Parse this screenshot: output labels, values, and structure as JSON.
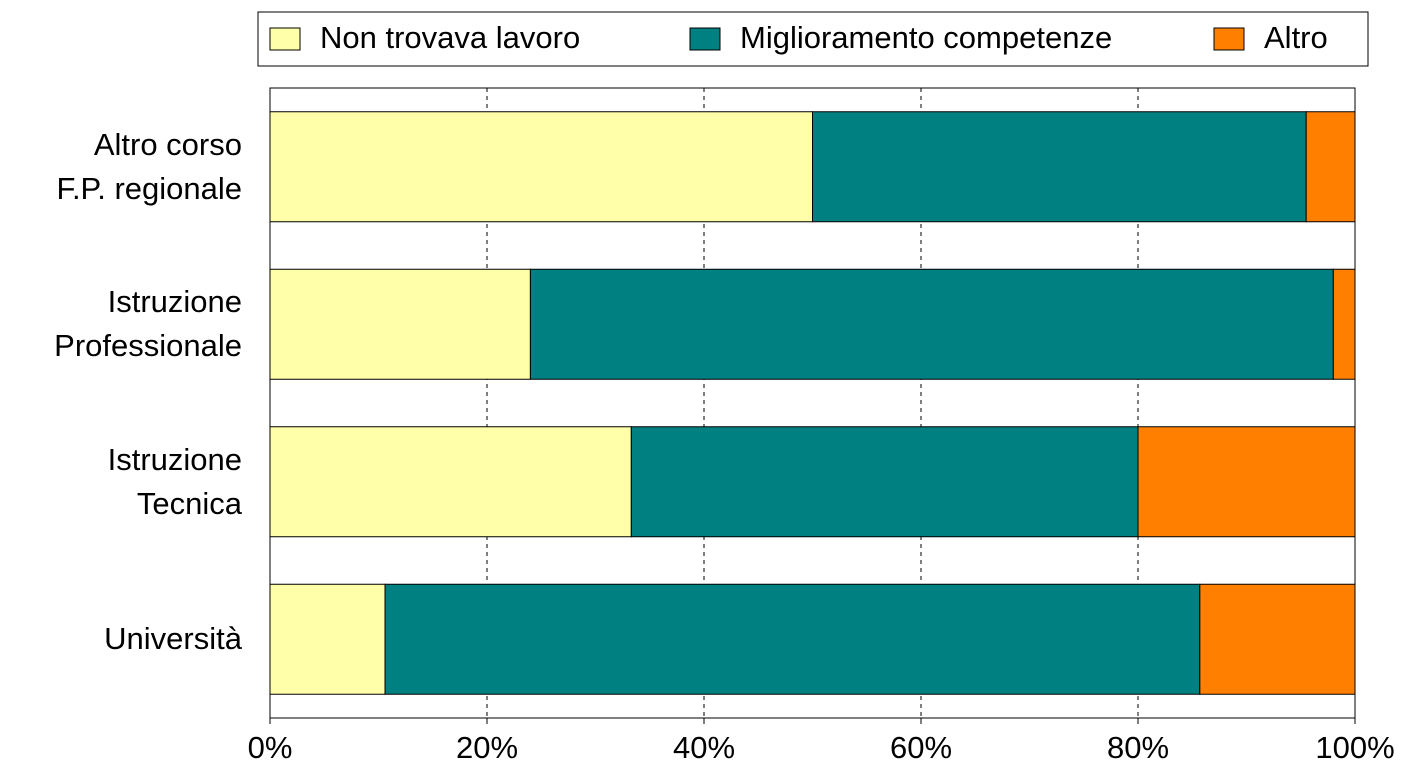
{
  "chart_data": {
    "type": "stacked-barh",
    "categories": [
      "Altro corso\nF.P. regionale",
      "Istruzione\nProfessionale",
      "Istruzione\nTecnica",
      "Università"
    ],
    "series": [
      {
        "name": "Non trovava lavoro",
        "color": "#ffffaa",
        "values": [
          50,
          24,
          33.3,
          10.6
        ]
      },
      {
        "name": "Miglioramento competenze",
        "color": "#008080",
        "values": [
          45.5,
          74,
          46.7,
          75.1
        ]
      },
      {
        "name": "Altro",
        "color": "#ff8000",
        "values": [
          4.5,
          2,
          20,
          14.3
        ]
      }
    ],
    "xlim": [
      0,
      100
    ],
    "xticks": [
      {
        "value": 0,
        "label": "0%"
      },
      {
        "value": 20,
        "label": "20%"
      },
      {
        "value": 40,
        "label": "40%"
      },
      {
        "value": 60,
        "label": "60%"
      },
      {
        "value": 80,
        "label": "80%"
      },
      {
        "value": 100,
        "label": "100%"
      }
    ],
    "grid": true,
    "legend": "top"
  }
}
